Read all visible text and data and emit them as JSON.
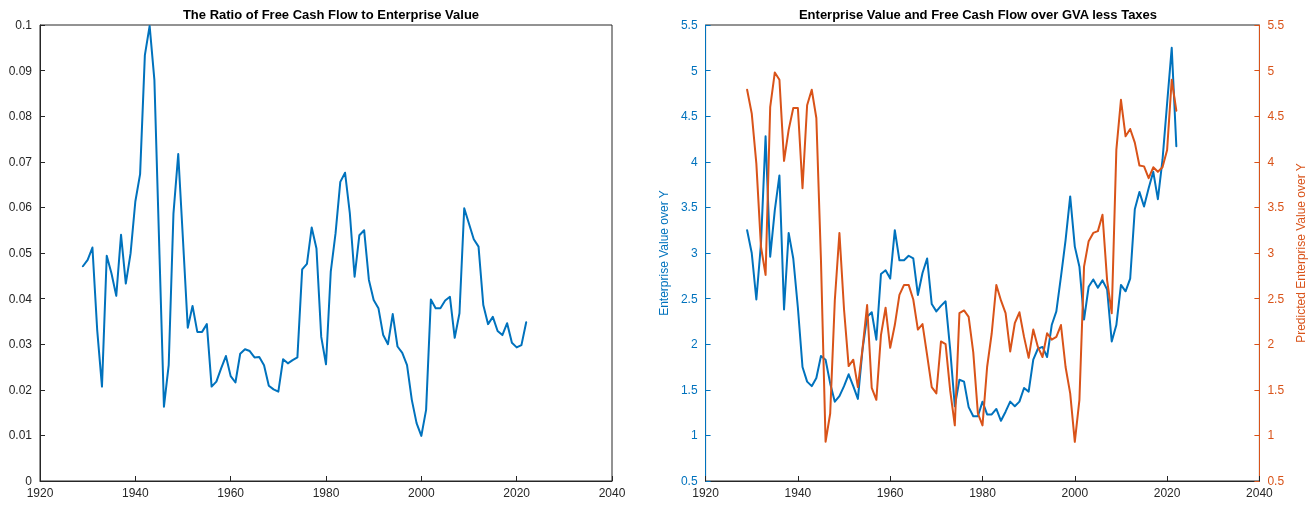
{
  "chart_data": [
    {
      "type": "line",
      "title": "The Ratio of Free Cash Flow to Enterprise Value",
      "x": [
        1929,
        1930,
        1931,
        1932,
        1933,
        1934,
        1935,
        1936,
        1937,
        1938,
        1939,
        1940,
        1941,
        1942,
        1943,
        1944,
        1945,
        1946,
        1947,
        1948,
        1949,
        1950,
        1951,
        1952,
        1953,
        1954,
        1955,
        1956,
        1957,
        1958,
        1959,
        1960,
        1961,
        1962,
        1963,
        1964,
        1965,
        1966,
        1967,
        1968,
        1969,
        1970,
        1971,
        1972,
        1973,
        1974,
        1975,
        1976,
        1977,
        1978,
        1979,
        1980,
        1981,
        1982,
        1983,
        1984,
        1985,
        1986,
        1987,
        1988,
        1989,
        1990,
        1991,
        1992,
        1993,
        1994,
        1995,
        1996,
        1997,
        1998,
        1999,
        2000,
        2001,
        2002,
        2003,
        2004,
        2005,
        2006,
        2007,
        2008,
        2009,
        2010,
        2011,
        2012,
        2013,
        2014,
        2015,
        2016,
        2017,
        2018,
        2019,
        2020,
        2021,
        2022
      ],
      "series": [
        {
          "color": "#0072bd",
          "values": [
            0.0471,
            0.0485,
            0.0512,
            0.0331,
            0.0207,
            0.0494,
            0.0455,
            0.0406,
            0.054,
            0.0433,
            0.0499,
            0.0613,
            0.0673,
            0.0934,
            0.0998,
            0.0879,
            0.052,
            0.0163,
            0.0254,
            0.0587,
            0.0717,
            0.0528,
            0.0336,
            0.0384,
            0.0327,
            0.0327,
            0.0344,
            0.0207,
            0.0218,
            0.0247,
            0.0274,
            0.023,
            0.0216,
            0.0279,
            0.0289,
            0.0285,
            0.0271,
            0.0272,
            0.0254,
            0.0209,
            0.0201,
            0.0196,
            0.0267,
            0.0258,
            0.0265,
            0.0271,
            0.0464,
            0.0476,
            0.0556,
            0.051,
            0.0316,
            0.0256,
            0.0459,
            0.0543,
            0.0656,
            0.0676,
            0.0587,
            0.0448,
            0.0539,
            0.055,
            0.0441,
            0.0397,
            0.0379,
            0.032,
            0.03,
            0.0366,
            0.0295,
            0.0281,
            0.0254,
            0.0178,
            0.0127,
            0.0099,
            0.0156,
            0.0398,
            0.0379,
            0.0379,
            0.0396,
            0.0404,
            0.0314,
            0.0368,
            0.0598,
            0.0564,
            0.053,
            0.0514,
            0.0386,
            0.0344,
            0.036,
            0.0329,
            0.032,
            0.0346,
            0.0303,
            0.0293,
            0.0298,
            0.0348
          ]
        }
      ],
      "xlim": [
        1920,
        2040
      ],
      "xticks": [
        1920,
        1940,
        1960,
        1980,
        2000,
        2020,
        2040
      ],
      "ylim": [
        0,
        0.1
      ],
      "yticks": [
        0,
        0.01,
        0.02,
        0.03,
        0.04,
        0.05,
        0.06,
        0.07,
        0.08,
        0.09,
        0.1
      ],
      "grid": false,
      "marker": "none",
      "line_style": "solid"
    },
    {
      "type": "line",
      "title": "Enterprise Value and Free Cash Flow over GVA less Taxes",
      "ylabel": "Enterprise Value over Y",
      "y2label": "Predicted Enterprise Value over Y",
      "x": [
        1929,
        1930,
        1931,
        1932,
        1933,
        1934,
        1935,
        1936,
        1937,
        1938,
        1939,
        1940,
        1941,
        1942,
        1943,
        1944,
        1945,
        1946,
        1947,
        1948,
        1949,
        1950,
        1951,
        1952,
        1953,
        1954,
        1955,
        1956,
        1957,
        1958,
        1959,
        1960,
        1961,
        1962,
        1963,
        1964,
        1965,
        1966,
        1967,
        1968,
        1969,
        1970,
        1971,
        1972,
        1973,
        1974,
        1975,
        1976,
        1977,
        1978,
        1979,
        1980,
        1981,
        1982,
        1983,
        1984,
        1985,
        1986,
        1987,
        1988,
        1989,
        1990,
        1991,
        1992,
        1993,
        1994,
        1995,
        1996,
        1997,
        1998,
        1999,
        2000,
        2001,
        2002,
        2003,
        2004,
        2005,
        2006,
        2007,
        2008,
        2009,
        2010,
        2011,
        2012,
        2013,
        2014,
        2015,
        2016,
        2017,
        2018,
        2019,
        2020,
        2021,
        2022
      ],
      "series": [
        {
          "color": "#0072bd",
          "values": [
            3.25,
            3.0,
            2.49,
            3.1,
            4.28,
            2.96,
            3.47,
            3.85,
            2.38,
            3.22,
            2.94,
            2.4,
            1.75,
            1.59,
            1.54,
            1.63,
            1.87,
            1.83,
            1.57,
            1.37,
            1.43,
            1.54,
            1.67,
            1.54,
            1.4,
            1.94,
            2.3,
            2.35,
            2.05,
            2.77,
            2.81,
            2.72,
            3.25,
            2.92,
            2.92,
            2.97,
            2.94,
            2.54,
            2.78,
            2.94,
            2.44,
            2.36,
            2.42,
            2.47,
            1.94,
            1.32,
            1.61,
            1.59,
            1.31,
            1.21,
            1.21,
            1.37,
            1.23,
            1.23,
            1.29,
            1.16,
            1.26,
            1.37,
            1.32,
            1.37,
            1.52,
            1.48,
            1.83,
            1.95,
            1.97,
            1.86,
            2.21,
            2.36,
            2.74,
            3.14,
            3.62,
            3.07,
            2.85,
            2.27,
            2.63,
            2.71,
            2.62,
            2.7,
            2.6,
            2.03,
            2.21,
            2.65,
            2.58,
            2.72,
            3.48,
            3.67,
            3.51,
            3.71,
            3.89,
            3.59,
            4.02,
            4.64,
            5.25,
            4.17
          ]
        },
        {
          "color": "#d95319",
          "axis": "y2",
          "values": [
            4.79,
            4.53,
            3.98,
            3.07,
            2.76,
            4.6,
            4.98,
            4.9,
            4.01,
            4.35,
            4.59,
            4.59,
            3.71,
            4.62,
            4.79,
            4.48,
            2.92,
            0.93,
            1.24,
            2.48,
            3.22,
            2.38,
            1.76,
            1.83,
            1.53,
            1.95,
            2.43,
            1.52,
            1.39,
            2.1,
            2.4,
            1.96,
            2.21,
            2.54,
            2.65,
            2.65,
            2.49,
            2.16,
            2.22,
            1.88,
            1.53,
            1.46,
            2.03,
            2.0,
            1.49,
            1.11,
            2.34,
            2.37,
            2.3,
            1.91,
            1.24,
            1.11,
            1.75,
            2.12,
            2.65,
            2.48,
            2.34,
            1.92,
            2.23,
            2.35,
            2.08,
            1.85,
            2.16,
            1.97,
            1.86,
            2.12,
            2.05,
            2.08,
            2.21,
            1.75,
            1.46,
            0.93,
            1.39,
            2.85,
            3.13,
            3.22,
            3.24,
            3.42,
            2.7,
            2.34,
            4.13,
            4.68,
            4.28,
            4.36,
            4.21,
            3.96,
            3.95,
            3.82,
            3.94,
            3.89,
            3.94,
            4.13,
            4.9,
            4.56
          ]
        }
      ],
      "xlim": [
        1920,
        2040
      ],
      "xticks": [
        1920,
        1940,
        1960,
        1980,
        2000,
        2020,
        2040
      ],
      "ylim": [
        0.5,
        5.5
      ],
      "yticks": [
        0.5,
        1,
        1.5,
        2,
        2.5,
        3,
        3.5,
        4,
        4.5,
        5,
        5.5
      ],
      "y2lim": [
        0.5,
        5.5
      ],
      "y2ticks": [
        0.5,
        1,
        1.5,
        2,
        2.5,
        3,
        3.5,
        4,
        4.5,
        5,
        5.5
      ],
      "grid": false,
      "marker": "none",
      "line_style": "solid"
    }
  ]
}
